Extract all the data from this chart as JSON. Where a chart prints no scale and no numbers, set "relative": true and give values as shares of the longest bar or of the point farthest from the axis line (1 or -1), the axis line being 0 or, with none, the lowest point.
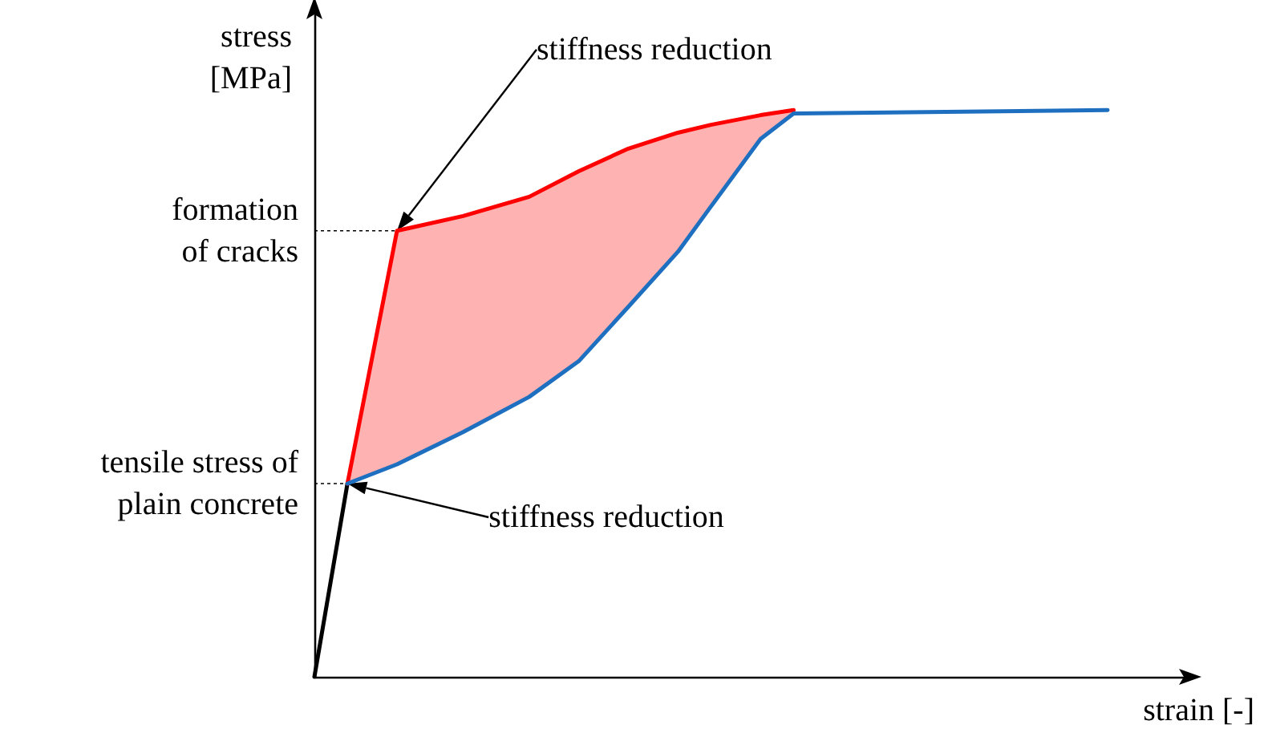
{
  "chart_data": {
    "type": "line",
    "relative": true,
    "xlabel": "strain [-]",
    "ylabel": "stress\n[MPa]",
    "grid": false,
    "marker": "none",
    "line_style": "solid",
    "categories": [
      null,
      null,
      null,
      null,
      null,
      null,
      null,
      null,
      null,
      null,
      null,
      null,
      null,
      null,
      null,
      null,
      null,
      null,
      null,
      null,
      null,
      null,
      null,
      null,
      null,
      null,
      null,
      null,
      null,
      null,
      null,
      null,
      null,
      null,
      null,
      null,
      null,
      null,
      null,
      null,
      null,
      null,
      null,
      null,
      null,
      null,
      null,
      null,
      null,
      null,
      null,
      null,
      null,
      null
    ],
    "series": [
      {
        "color": "#000000",
        "values": [
          0,
          null,
          0.341,
          null,
          null,
          null,
          null,
          null,
          null,
          null,
          null,
          null,
          null,
          null,
          null,
          null,
          null,
          null,
          null,
          null,
          null,
          null,
          null,
          null,
          null,
          null,
          null,
          null,
          null,
          null,
          null,
          null,
          null,
          null,
          null,
          null,
          null,
          null,
          null,
          null,
          null,
          null,
          null,
          null,
          null,
          null,
          null,
          null,
          null,
          null,
          null,
          null,
          null,
          null
        ]
      },
      {
        "color": "#ff0000",
        "values": [
          null,
          null,
          0.341,
          null,
          null,
          0.787,
          null,
          null,
          null,
          0.813,
          null,
          null,
          null,
          0.847,
          null,
          null,
          0.892,
          null,
          null,
          0.932,
          null,
          null,
          0.96,
          null,
          0.974,
          null,
          null,
          0.991,
          null,
          1,
          null,
          null,
          null,
          null,
          null,
          null,
          null,
          null,
          null,
          null,
          null,
          null,
          null,
          null,
          null,
          null,
          null,
          null,
          null,
          null,
          null,
          null,
          null,
          null
        ],
        "lower": [
          null,
          null,
          0.341,
          null,
          null,
          0.375,
          null,
          null,
          null,
          0.432,
          null,
          null,
          null,
          0.494,
          null,
          null,
          0.557,
          null,
          null,
          0.653,
          null,
          null,
          0.75,
          null,
          0.83,
          null,
          null,
          0.949,
          null,
          0.994,
          null,
          null,
          null,
          null,
          null,
          null,
          null,
          null,
          null,
          null,
          null,
          null,
          null,
          null,
          null,
          null,
          null,
          null,
          null,
          null,
          null,
          null,
          null,
          null
        ],
        "upper": [
          null,
          null,
          0.341,
          null,
          null,
          0.787,
          null,
          null,
          null,
          0.813,
          null,
          null,
          null,
          0.847,
          null,
          null,
          0.892,
          null,
          null,
          0.932,
          null,
          null,
          0.96,
          null,
          0.974,
          null,
          null,
          0.991,
          null,
          1,
          null,
          null,
          null,
          null,
          null,
          null,
          null,
          null,
          null,
          null,
          null,
          null,
          null,
          null,
          null,
          null,
          null,
          null,
          null,
          null,
          null,
          null,
          null,
          null
        ]
      },
      {
        "color": "#1f6fc0",
        "values": [
          null,
          null,
          0.341,
          null,
          null,
          0.375,
          null,
          null,
          null,
          0.432,
          null,
          null,
          null,
          0.494,
          null,
          null,
          0.557,
          null,
          null,
          0.653,
          null,
          null,
          0.75,
          null,
          0.83,
          null,
          null,
          0.949,
          null,
          0.994,
          null,
          null,
          null,
          null,
          null,
          null,
          null,
          null,
          null,
          null,
          null,
          null,
          null,
          null,
          null,
          null,
          null,
          null,
          1,
          null,
          null,
          null,
          null,
          null
        ]
      }
    ],
    "ref_lines": [
      {
        "axis": "y",
        "value": 0.787,
        "label": "formation\nof cracks",
        "line_style": "dotted"
      },
      {
        "axis": "y",
        "value": 0.341,
        "label": "tensile stress of\nplain concrete",
        "line_style": "dotted"
      }
    ],
    "annotations": [
      "stiffness reduction",
      "stiffness reduction"
    ]
  }
}
